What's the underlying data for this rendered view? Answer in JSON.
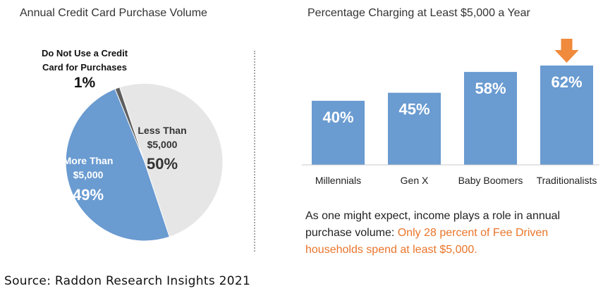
{
  "left_chart": {
    "title": "Annual Credit Card Purchase Volume",
    "chart_data": {
      "type": "pie",
      "title": "Annual Credit Card Purchase Volume",
      "slices": [
        {
          "label_lines": [
            "Do Not Use a Credit",
            "Card for Purchases"
          ],
          "value": 1,
          "value_label": "1%",
          "color": "#5f5f5f"
        },
        {
          "label_lines": [
            "Less Than",
            "$5,000"
          ],
          "value": 50,
          "value_label": "50%",
          "color": "#e6e6e6"
        },
        {
          "label_lines": [
            "More Than",
            "$5,000"
          ],
          "value": 49,
          "value_label": "49%",
          "color": "#6a9bd1"
        }
      ]
    }
  },
  "right_chart": {
    "title": "Percentage Charging at Least $5,000 a Year",
    "chart_data": {
      "type": "bar",
      "title": "Percentage Charging at Least $5,000 a Year",
      "categories": [
        "Millennials",
        "Gen X",
        "Baby Boomers",
        "Traditionalists"
      ],
      "values": [
        40,
        45,
        58,
        62
      ],
      "value_labels": [
        "40%",
        "45%",
        "58%",
        "62%"
      ],
      "unit": "%",
      "ylim": [
        0,
        62
      ],
      "bar_color": "#6a9bd1",
      "highlight": {
        "category": "Traditionalists",
        "marker": "down-arrow-icon",
        "color": "#f08a3c"
      }
    }
  },
  "note": {
    "text_plain": "As one might expect, income plays a role in annual purchase volume: ",
    "text_highlight": "Only 28 percent of Fee Driven households spend at least $5,000.",
    "highlight_color": "#e9752a"
  },
  "source": "Source:  Raddon Research Insights 2021"
}
